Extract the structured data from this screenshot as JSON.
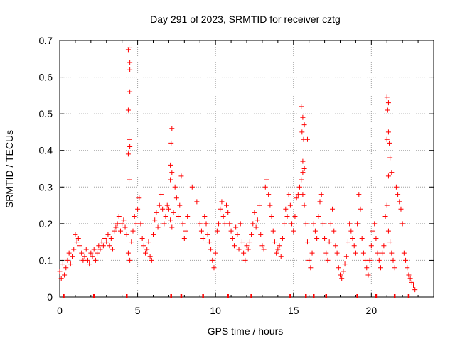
{
  "chart_data": {
    "type": "scatter",
    "title": "Day 291 of 2023, SRMTID for receiver cztg",
    "xlabel": "GPS time / hours",
    "ylabel": "SRMTID / TECUs",
    "xlim": [
      0,
      24
    ],
    "ylim": [
      0,
      0.7
    ],
    "xticks": [
      0,
      5,
      10,
      15,
      20
    ],
    "yticks": [
      0,
      0.1,
      0.2,
      0.3,
      0.4,
      0.5,
      0.6,
      0.7
    ],
    "xtick_labels": [
      "0",
      "5",
      "10",
      "15",
      "20"
    ],
    "ytick_labels": [
      "0",
      "0.1",
      "0.2",
      "0.3",
      "0.4",
      "0.5",
      "0.6",
      "0.7"
    ],
    "grid": true,
    "marker": "+",
    "color": "#ff0000",
    "series": [
      {
        "name": "SRMTID",
        "x": [
          0.0,
          0.1,
          0.2,
          0.3,
          0.4,
          0.5,
          0.6,
          0.7,
          0.8,
          0.9,
          1.0,
          1.1,
          1.2,
          1.3,
          1.4,
          1.5,
          1.6,
          1.7,
          1.8,
          1.9,
          2.0,
          2.1,
          2.2,
          2.3,
          2.4,
          2.5,
          2.6,
          2.7,
          2.8,
          2.9,
          3.0,
          3.1,
          3.2,
          3.3,
          3.4,
          3.5,
          3.6,
          3.7,
          3.8,
          3.9,
          4.0,
          4.1,
          4.2,
          4.3,
          4.4,
          4.5,
          4.6,
          4.7,
          4.8,
          4.9,
          5.0,
          5.1,
          5.2,
          5.3,
          5.4,
          5.5,
          5.6,
          5.7,
          5.8,
          5.9,
          6.0,
          6.1,
          6.2,
          6.3,
          6.4,
          6.5,
          6.6,
          6.7,
          6.8,
          6.9,
          7.0,
          7.1,
          7.2,
          7.3,
          7.4,
          7.5,
          7.6,
          7.7,
          7.8,
          7.9,
          8.0,
          8.1,
          8.2,
          8.5,
          8.8,
          9.0,
          9.1,
          9.2,
          9.3,
          9.4,
          9.5,
          9.6,
          9.7,
          9.8,
          9.9,
          10.0,
          10.1,
          10.2,
          10.3,
          10.4,
          10.5,
          10.6,
          10.7,
          10.8,
          10.9,
          11.0,
          11.1,
          11.2,
          11.3,
          11.4,
          11.5,
          11.6,
          11.7,
          11.8,
          11.9,
          12.0,
          12.1,
          12.2,
          12.3,
          12.4,
          12.5,
          12.6,
          12.7,
          12.8,
          12.9,
          13.0,
          13.1,
          13.2,
          13.3,
          13.4,
          13.5,
          13.6,
          13.7,
          13.8,
          13.9,
          14.0,
          14.1,
          14.2,
          14.3,
          14.4,
          14.5,
          14.6,
          14.7,
          14.8,
          14.9,
          15.0,
          15.1,
          15.2,
          15.3,
          15.4,
          15.5,
          15.6,
          15.7,
          15.8,
          15.9,
          16.0,
          16.1,
          16.2,
          16.3,
          16.4,
          16.5,
          16.6,
          16.7,
          16.8,
          16.9,
          17.0,
          17.1,
          17.2,
          17.3,
          17.4,
          17.5,
          17.6,
          17.7,
          17.8,
          17.9,
          18.0,
          18.1,
          18.2,
          18.3,
          18.4,
          18.5,
          18.6,
          18.7,
          18.8,
          18.9,
          19.0,
          19.1,
          19.2,
          19.3,
          19.4,
          19.5,
          19.6,
          19.7,
          19.8,
          19.9,
          20.0,
          20.1,
          20.2,
          20.3,
          20.4,
          20.5,
          20.6,
          20.7,
          20.8,
          20.9,
          21.0,
          21.1,
          21.2,
          21.3,
          21.4,
          21.5,
          21.6,
          21.7,
          21.8,
          21.9,
          22.0,
          22.1,
          22.2,
          22.3,
          22.4,
          22.5,
          22.6,
          22.7,
          22.8,
          4.4,
          4.45,
          4.5,
          4.5,
          4.45,
          4.5,
          4.4,
          4.45,
          4.5,
          4.4,
          4.45,
          15.5,
          15.6,
          15.7,
          15.55,
          15.65,
          15.6,
          15.9,
          15.7,
          15.6,
          21.0,
          21.1,
          21.05,
          21.1,
          21.0,
          21.15,
          21.2,
          21.3,
          21.1,
          7.2,
          7.15,
          7.1,
          7.2,
          7.1
        ],
        "y": [
          0.07,
          0.05,
          0.09,
          0.06,
          0.08,
          0.1,
          0.12,
          0.09,
          0.11,
          0.13,
          0.17,
          0.15,
          0.16,
          0.14,
          0.12,
          0.1,
          0.11,
          0.13,
          0.1,
          0.09,
          0.12,
          0.11,
          0.13,
          0.1,
          0.12,
          0.14,
          0.13,
          0.15,
          0.14,
          0.16,
          0.15,
          0.17,
          0.14,
          0.16,
          0.13,
          0.18,
          0.19,
          0.2,
          0.22,
          0.18,
          0.2,
          0.21,
          0.19,
          0.17,
          0.12,
          0.1,
          0.15,
          0.18,
          0.22,
          0.2,
          0.24,
          0.27,
          0.2,
          0.16,
          0.14,
          0.12,
          0.13,
          0.15,
          0.11,
          0.1,
          0.17,
          0.21,
          0.23,
          0.19,
          0.25,
          0.28,
          0.24,
          0.2,
          0.22,
          0.25,
          0.24,
          0.21,
          0.19,
          0.23,
          0.3,
          0.27,
          0.22,
          0.25,
          0.33,
          0.2,
          0.16,
          0.18,
          0.22,
          0.3,
          0.26,
          0.2,
          0.18,
          0.16,
          0.22,
          0.2,
          0.17,
          0.15,
          0.13,
          0.1,
          0.08,
          0.12,
          0.18,
          0.2,
          0.24,
          0.26,
          0.22,
          0.2,
          0.25,
          0.23,
          0.2,
          0.18,
          0.16,
          0.14,
          0.19,
          0.17,
          0.13,
          0.2,
          0.15,
          0.12,
          0.1,
          0.14,
          0.13,
          0.15,
          0.17,
          0.2,
          0.23,
          0.19,
          0.21,
          0.25,
          0.17,
          0.14,
          0.13,
          0.3,
          0.32,
          0.28,
          0.25,
          0.22,
          0.18,
          0.15,
          0.12,
          0.13,
          0.14,
          0.11,
          0.16,
          0.2,
          0.24,
          0.22,
          0.28,
          0.25,
          0.2,
          0.18,
          0.22,
          0.27,
          0.28,
          0.3,
          0.32,
          0.28,
          0.25,
          0.2,
          0.15,
          0.1,
          0.08,
          0.12,
          0.2,
          0.18,
          0.16,
          0.22,
          0.26,
          0.28,
          0.2,
          0.16,
          0.12,
          0.1,
          0.15,
          0.2,
          0.24,
          0.18,
          0.14,
          0.12,
          0.08,
          0.06,
          0.05,
          0.07,
          0.09,
          0.11,
          0.15,
          0.2,
          0.18,
          0.16,
          0.14,
          0.12,
          0.2,
          0.28,
          0.24,
          0.16,
          0.12,
          0.1,
          0.08,
          0.06,
          0.1,
          0.14,
          0.18,
          0.2,
          0.16,
          0.12,
          0.1,
          0.08,
          0.12,
          0.14,
          0.22,
          0.25,
          0.18,
          0.15,
          0.12,
          0.1,
          0.08,
          0.3,
          0.28,
          0.26,
          0.24,
          0.2,
          0.12,
          0.1,
          0.08,
          0.06,
          0.05,
          0.04,
          0.03,
          0.02,
          0.675,
          0.68,
          0.64,
          0.62,
          0.56,
          0.56,
          0.51,
          0.43,
          0.41,
          0.39,
          0.32,
          0.52,
          0.49,
          0.47,
          0.45,
          0.43,
          0.37,
          0.43,
          0.35,
          0.34,
          0.545,
          0.53,
          0.51,
          0.45,
          0.43,
          0.42,
          0.38,
          0.34,
          0.33,
          0.46,
          0.42,
          0.36,
          0.34,
          0.32
        ]
      }
    ],
    "bottom_ticks_x": [
      0.25,
      2.2,
      4.3,
      7.15,
      7.8,
      9.2,
      10.8,
      12.3,
      14.8,
      15.8,
      16.3,
      17.1,
      19.1,
      20.3,
      21.5,
      22.4
    ]
  }
}
